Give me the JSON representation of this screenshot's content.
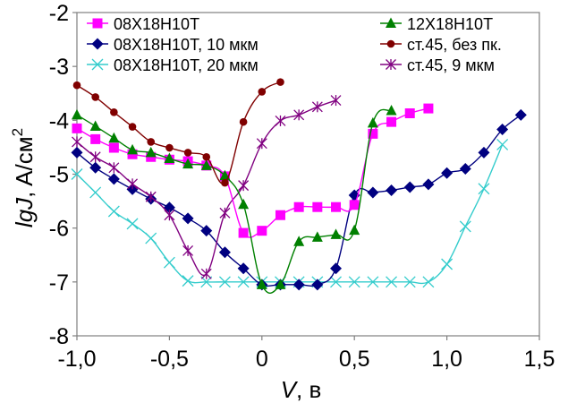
{
  "chart_data": {
    "type": "line",
    "title": "",
    "xlabel_italic": "V",
    "xlabel_rest": ", в",
    "ylabel_italic": "lgJ",
    "ylabel_rest": ", A/см",
    "ylabel_sup": "2",
    "xlim": [
      -1.0,
      1.5
    ],
    "ylim": [
      -8,
      -2
    ],
    "xticks": [
      -1.0,
      -0.5,
      0,
      0.5,
      1.0,
      1.5
    ],
    "xtick_labels": [
      "-1,0",
      "-0,5",
      "0",
      "0,5",
      "1,0",
      "1,5"
    ],
    "yticks": [
      -2,
      -3,
      -4,
      -5,
      -6,
      -7,
      -8
    ],
    "ytick_labels": [
      "-2",
      "-3",
      "-4",
      "-5",
      "-6",
      "-7",
      "-8"
    ],
    "grid": false,
    "legend_position": "top (two columns inside plot)",
    "series": [
      {
        "name": "08X18H10T",
        "color": "#ff00ff",
        "marker": "square",
        "x": [
          -1.0,
          -0.9,
          -0.8,
          -0.7,
          -0.6,
          -0.5,
          -0.4,
          -0.3,
          -0.2,
          -0.1,
          0,
          0.1,
          0.2,
          0.3,
          0.4,
          0.5,
          0.6,
          0.7,
          0.8,
          0.9
        ],
        "y": [
          -4.15,
          -4.35,
          -4.51,
          -4.63,
          -4.68,
          -4.73,
          -4.76,
          -4.84,
          -5.04,
          -6.09,
          -6.05,
          -5.76,
          -5.61,
          -5.61,
          -5.61,
          -5.57,
          -4.25,
          -4.03,
          -3.87,
          -3.78
        ]
      },
      {
        "name": "08X18H10T, 10 мкм",
        "color": "#000080",
        "marker": "diamond",
        "x": [
          -1.0,
          -0.9,
          -0.8,
          -0.7,
          -0.6,
          -0.5,
          -0.4,
          -0.3,
          -0.2,
          -0.1,
          0,
          0.1,
          0.2,
          0.3,
          0.4,
          0.5,
          0.6,
          0.7,
          0.8,
          0.9,
          1.0,
          1.1,
          1.2,
          1.3,
          1.4
        ],
        "y": [
          -4.6,
          -4.88,
          -5.09,
          -5.28,
          -5.46,
          -5.62,
          -5.82,
          -6.05,
          -6.45,
          -6.75,
          -7.05,
          -7.05,
          -7.05,
          -7.05,
          -6.75,
          -5.39,
          -5.34,
          -5.3,
          -5.24,
          -5.19,
          -4.98,
          -4.9,
          -4.6,
          -4.17,
          -3.9
        ]
      },
      {
        "name": "08X18H10T, 20 мкм",
        "color": "#33cccc",
        "marker": "x",
        "x": [
          -1.0,
          -0.9,
          -0.8,
          -0.7,
          -0.6,
          -0.5,
          -0.4,
          -0.3,
          -0.2,
          -0.1,
          0,
          0.1,
          0.2,
          0.3,
          0.4,
          0.5,
          0.6,
          0.7,
          0.8,
          0.9,
          1.0,
          1.1,
          1.2,
          1.3
        ],
        "y": [
          -5.0,
          -5.34,
          -5.69,
          -5.92,
          -6.19,
          -6.64,
          -6.98,
          -7.0,
          -7.0,
          -7.0,
          -7.0,
          -7.0,
          -7.0,
          -7.0,
          -7.0,
          -7.0,
          -7.0,
          -7.0,
          -7.0,
          -7.0,
          -6.67,
          -5.97,
          -5.27,
          -4.45
        ]
      },
      {
        "name": "12X18H10T",
        "color": "#008000",
        "marker": "triangle",
        "x": [
          -1.0,
          -0.9,
          -0.8,
          -0.7,
          -0.6,
          -0.5,
          -0.4,
          -0.3,
          -0.2,
          -0.1,
          0,
          0.1,
          0.2,
          0.3,
          0.4,
          0.5,
          0.6,
          0.7
        ],
        "y": [
          -3.9,
          -4.11,
          -4.33,
          -4.55,
          -4.6,
          -4.71,
          -4.81,
          -4.84,
          -5.03,
          -5.56,
          -7.05,
          -7.05,
          -6.25,
          -6.17,
          -6.12,
          -6.04,
          -4.05,
          -3.82
        ]
      },
      {
        "name": "ст.45, без пк.",
        "color": "#800000",
        "marker": "circle",
        "x": [
          -1.0,
          -0.9,
          -0.8,
          -0.7,
          -0.6,
          -0.5,
          -0.4,
          -0.3,
          -0.2,
          -0.1,
          0,
          0.1
        ],
        "y": [
          -3.35,
          -3.57,
          -3.85,
          -4.12,
          -4.4,
          -4.51,
          -4.6,
          -4.68,
          -5.16,
          -4.03,
          -3.47,
          -3.29
        ]
      },
      {
        "name": "ст.45, 9 мкм",
        "color": "#800080",
        "marker": "star",
        "x": [
          -1.0,
          -0.9,
          -0.8,
          -0.7,
          -0.6,
          -0.5,
          -0.4,
          -0.3,
          -0.2,
          -0.1,
          0,
          0.1,
          0.2,
          0.3,
          0.4
        ],
        "y": [
          -4.4,
          -4.68,
          -4.88,
          -5.18,
          -5.42,
          -5.76,
          -6.42,
          -6.85,
          -5.72,
          -5.21,
          -4.43,
          -4.01,
          -3.9,
          -3.75,
          -3.63
        ]
      }
    ]
  }
}
